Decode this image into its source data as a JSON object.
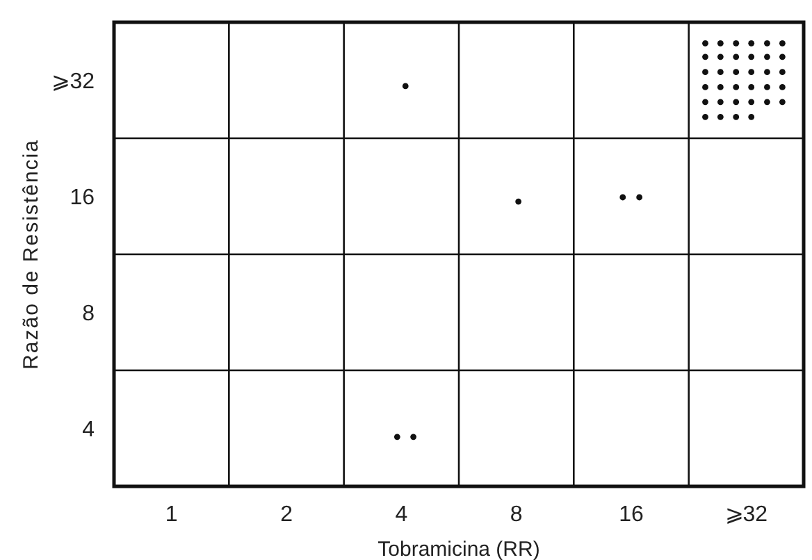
{
  "chart_data": {
    "type": "scatter",
    "xlabel": "Tobramicina (RR)",
    "ylabel": "Razão de Resistência",
    "log": "xy",
    "marker": "circle",
    "xlim": [
      0.707,
      45.25
    ],
    "ylim": [
      2.828,
      45.25
    ],
    "xticks": [
      1,
      2,
      4,
      8,
      16,
      {
        "value": 32,
        "label": "⩾32"
      }
    ],
    "yticks": [
      4,
      8,
      16,
      {
        "value": 32,
        "label": "⩾32"
      }
    ],
    "ref_lines": [
      {
        "axis": "x",
        "value": 1.414
      },
      {
        "axis": "x",
        "value": 2.828
      },
      {
        "axis": "x",
        "value": 5.657
      },
      {
        "axis": "x",
        "value": 11.31
      },
      {
        "axis": "x",
        "value": 22.63
      },
      {
        "axis": "y",
        "value": 5.657
      },
      {
        "axis": "y",
        "value": 11.31
      },
      {
        "axis": "y",
        "value": 22.63
      }
    ],
    "series": [
      {
        "color": "#111111",
        "x": [
          4.1,
          8.1,
          15.2,
          16.8,
          3.9,
          4.3,
          25.0,
          27.4,
          30.1,
          33.0,
          36.3,
          39.8,
          25.0,
          27.4,
          30.1,
          33.0,
          36.3,
          39.8,
          25.0,
          27.4,
          30.1,
          33.0,
          36.3,
          39.8,
          25.0,
          27.4,
          30.1,
          33.0,
          36.3,
          39.8,
          25.0,
          27.4,
          30.1,
          33.0,
          36.3,
          39.8,
          25.0,
          27.4,
          30.1,
          33.0
        ],
        "values": [
          30.9,
          15.5,
          15.9,
          15.9,
          3.8,
          3.8,
          39.9,
          39.9,
          39.9,
          39.9,
          39.9,
          39.9,
          36.8,
          36.8,
          36.8,
          36.8,
          36.8,
          36.8,
          33.6,
          33.6,
          33.6,
          33.6,
          33.6,
          33.6,
          30.7,
          30.7,
          30.7,
          30.7,
          30.7,
          30.7,
          28.1,
          28.1,
          28.1,
          28.1,
          28.1,
          28.1,
          25.7,
          25.7,
          25.7,
          25.7
        ]
      }
    ]
  }
}
